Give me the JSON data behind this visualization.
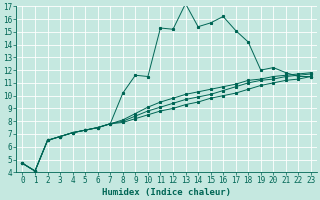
{
  "title": "",
  "xlabel": "Humidex (Indice chaleur)",
  "bg_color": "#c5e8e0",
  "grid_color": "#ffffff",
  "line_color": "#006655",
  "xlim": [
    -0.5,
    23.5
  ],
  "ylim": [
    4,
    17
  ],
  "xticks": [
    0,
    1,
    2,
    3,
    4,
    5,
    6,
    7,
    8,
    9,
    10,
    11,
    12,
    13,
    14,
    15,
    16,
    17,
    18,
    19,
    20,
    21,
    22,
    23
  ],
  "yticks": [
    4,
    5,
    6,
    7,
    8,
    9,
    10,
    11,
    12,
    13,
    14,
    15,
    16,
    17
  ],
  "main_x": [
    0,
    1,
    2,
    3,
    4,
    5,
    6,
    7,
    8,
    9,
    10,
    11,
    12,
    13,
    14,
    15,
    16,
    17,
    18,
    19,
    20,
    21,
    22,
    23
  ],
  "main_y": [
    4.7,
    4.1,
    6.5,
    6.8,
    7.1,
    7.3,
    7.5,
    7.8,
    10.2,
    11.6,
    11.5,
    15.3,
    15.2,
    17.2,
    15.4,
    15.7,
    16.2,
    15.1,
    14.2,
    12.0,
    12.2,
    11.8,
    11.5,
    11.5
  ],
  "line2_x": [
    0,
    1,
    2,
    3,
    4,
    5,
    6,
    7,
    8,
    9,
    10,
    11,
    12,
    13,
    14,
    15,
    16,
    17,
    18,
    19,
    20,
    21,
    22,
    23
  ],
  "line2_y": [
    4.7,
    4.1,
    6.5,
    6.8,
    7.1,
    7.3,
    7.5,
    7.8,
    7.9,
    8.2,
    8.5,
    8.8,
    9.0,
    9.3,
    9.5,
    9.8,
    10.0,
    10.2,
    10.5,
    10.8,
    11.0,
    11.2,
    11.3,
    11.5
  ],
  "line3_x": [
    0,
    1,
    2,
    3,
    4,
    5,
    6,
    7,
    8,
    9,
    10,
    11,
    12,
    13,
    14,
    15,
    16,
    17,
    18,
    19,
    20,
    21,
    22,
    23
  ],
  "line3_y": [
    4.7,
    4.1,
    6.5,
    6.8,
    7.1,
    7.3,
    7.5,
    7.8,
    8.0,
    8.4,
    8.8,
    9.1,
    9.4,
    9.7,
    9.9,
    10.1,
    10.4,
    10.7,
    11.0,
    11.2,
    11.3,
    11.5,
    11.6,
    11.7
  ],
  "line4_x": [
    0,
    1,
    2,
    3,
    4,
    5,
    6,
    7,
    8,
    9,
    10,
    11,
    12,
    13,
    14,
    15,
    16,
    17,
    18,
    19,
    20,
    21,
    22,
    23
  ],
  "line4_y": [
    4.7,
    4.1,
    6.5,
    6.8,
    7.1,
    7.3,
    7.5,
    7.8,
    8.1,
    8.6,
    9.1,
    9.5,
    9.8,
    10.1,
    10.3,
    10.5,
    10.7,
    10.9,
    11.2,
    11.3,
    11.5,
    11.6,
    11.7,
    11.8
  ],
  "tick_fontsize": 5.5,
  "xlabel_fontsize": 6.5,
  "lw": 0.7,
  "ms": 2.0
}
